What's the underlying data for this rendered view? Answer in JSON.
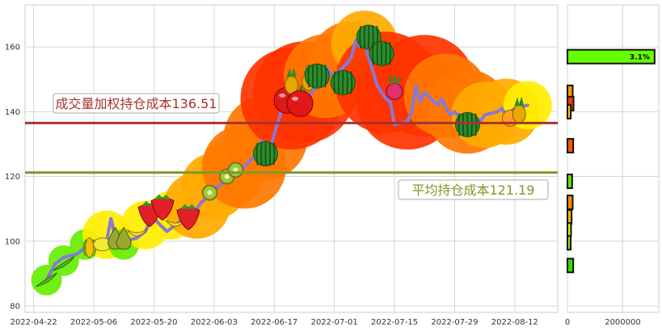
{
  "chart_data": {
    "type": "line",
    "title": "",
    "xlabel": "",
    "ylabel": "",
    "ylim": [
      78,
      173
    ],
    "x_ticks": [
      "2022-04-22",
      "2022-05-06",
      "2022-05-20",
      "2022-06-03",
      "2022-06-17",
      "2022-07-01",
      "2022-07-15",
      "2022-07-29",
      "2022-08-12"
    ],
    "y_ticks": [
      80,
      100,
      120,
      140,
      160
    ],
    "x_range": [
      "2022-04-20",
      "2022-08-22"
    ],
    "grid": true,
    "price": {
      "color": "#8878d8",
      "x": [
        "2022-04-25",
        "2022-04-27",
        "2022-04-29",
        "2022-05-02",
        "2022-05-04",
        "2022-05-06",
        "2022-05-09",
        "2022-05-10",
        "2022-05-11",
        "2022-05-12",
        "2022-05-13",
        "2022-05-16",
        "2022-05-17",
        "2022-05-18",
        "2022-05-19",
        "2022-05-20",
        "2022-05-23",
        "2022-05-24",
        "2022-05-25",
        "2022-05-26",
        "2022-05-27",
        "2022-05-30",
        "2022-05-31",
        "2022-06-01",
        "2022-06-02",
        "2022-06-06",
        "2022-06-07",
        "2022-06-08",
        "2022-06-09",
        "2022-06-10",
        "2022-06-13",
        "2022-06-14",
        "2022-06-15",
        "2022-06-16",
        "2022-06-17",
        "2022-06-20",
        "2022-06-21",
        "2022-06-22",
        "2022-06-23",
        "2022-06-24",
        "2022-06-27",
        "2022-06-28",
        "2022-06-29",
        "2022-06-30",
        "2022-07-01",
        "2022-07-04",
        "2022-07-05",
        "2022-07-06",
        "2022-07-07",
        "2022-07-08",
        "2022-07-11",
        "2022-07-12",
        "2022-07-13",
        "2022-07-14",
        "2022-07-15",
        "2022-07-18",
        "2022-07-19",
        "2022-07-20",
        "2022-07-21",
        "2022-07-22",
        "2022-07-25",
        "2022-07-26",
        "2022-07-27",
        "2022-07-28",
        "2022-07-29",
        "2022-08-01",
        "2022-08-02",
        "2022-08-03",
        "2022-08-04",
        "2022-08-05",
        "2022-08-08",
        "2022-08-09",
        "2022-08-10",
        "2022-08-11",
        "2022-08-12",
        "2022-08-15"
      ],
      "y": [
        88,
        93,
        95,
        96,
        98,
        100,
        100,
        107,
        101,
        99,
        100,
        101,
        102,
        103,
        106,
        107,
        103,
        104,
        105,
        106,
        108,
        110,
        112,
        113,
        115,
        119,
        121,
        120,
        122,
        123,
        127,
        131,
        130,
        128,
        133,
        146,
        145,
        144,
        142,
        143,
        148,
        150,
        154,
        152,
        151,
        155,
        157,
        162,
        160,
        161,
        148,
        146,
        144,
        143,
        136,
        137,
        140,
        148,
        143,
        146,
        142,
        144,
        141,
        139,
        140,
        135,
        136,
        138,
        137,
        139,
        140,
        141,
        139,
        140,
        141,
        142
      ]
    },
    "markers": {
      "x": [
        "2022-04-25",
        "2022-04-29",
        "2022-05-04",
        "2022-05-09",
        "2022-05-13",
        "2022-05-18",
        "2022-05-24",
        "2022-05-30",
        "2022-06-03",
        "2022-06-07",
        "2022-06-10",
        "2022-06-15",
        "2022-06-21",
        "2022-06-24",
        "2022-06-29",
        "2022-07-05",
        "2022-07-08",
        "2022-07-13",
        "2022-07-18",
        "2022-07-22",
        "2022-07-27",
        "2022-08-01",
        "2022-08-05",
        "2022-08-10",
        "2022-08-15"
      ],
      "y": [
        88,
        94,
        99,
        102,
        99,
        105,
        108,
        111,
        117,
        121,
        123,
        132,
        144,
        146,
        151,
        155,
        161,
        149,
        144,
        148,
        145,
        140,
        139,
        140,
        142
      ],
      "bubble_size": [
        1,
        1,
        1,
        2,
        1,
        2,
        2,
        3,
        3,
        3,
        4,
        4,
        5,
        5,
        4,
        4,
        3,
        5,
        5,
        5,
        4,
        4,
        3,
        3,
        2
      ]
    },
    "fruit_icons": [
      {
        "x": "2022-04-25",
        "y": 88,
        "kind": "peas"
      },
      {
        "x": "2022-04-29",
        "y": 93,
        "kind": "peas"
      },
      {
        "x": "2022-05-05",
        "y": 98,
        "kind": "corn"
      },
      {
        "x": "2022-05-08",
        "y": 99,
        "kind": "lemon"
      },
      {
        "x": "2022-05-11",
        "y": 101,
        "kind": "pear"
      },
      {
        "x": "2022-05-13",
        "y": 101,
        "kind": "pear"
      },
      {
        "x": "2022-05-16",
        "y": 103,
        "kind": "banana"
      },
      {
        "x": "2022-05-19",
        "y": 109,
        "kind": "strawberry"
      },
      {
        "x": "2022-05-22",
        "y": 111,
        "kind": "strawberry"
      },
      {
        "x": "2022-05-25",
        "y": 106,
        "kind": "banana"
      },
      {
        "x": "2022-05-28",
        "y": 108,
        "kind": "strawberry"
      },
      {
        "x": "2022-06-02",
        "y": 115,
        "kind": "kiwi"
      },
      {
        "x": "2022-06-06",
        "y": 120,
        "kind": "kiwi"
      },
      {
        "x": "2022-06-08",
        "y": 122,
        "kind": "kiwi"
      },
      {
        "x": "2022-06-15",
        "y": 127,
        "kind": "watermelon"
      },
      {
        "x": "2022-06-20",
        "y": 144,
        "kind": "apple"
      },
      {
        "x": "2022-06-21",
        "y": 149,
        "kind": "pineapple"
      },
      {
        "x": "2022-06-23",
        "y": 143,
        "kind": "apple"
      },
      {
        "x": "2022-06-25",
        "y": 150,
        "kind": "pineapple"
      },
      {
        "x": "2022-06-27",
        "y": 151,
        "kind": "watermelon"
      },
      {
        "x": "2022-07-03",
        "y": 149,
        "kind": "watermelon"
      },
      {
        "x": "2022-07-09",
        "y": 163,
        "kind": "watermelon"
      },
      {
        "x": "2022-07-12",
        "y": 158,
        "kind": "watermelon"
      },
      {
        "x": "2022-07-15",
        "y": 147,
        "kind": "radish"
      },
      {
        "x": "2022-08-01",
        "y": 136,
        "kind": "watermelon"
      },
      {
        "x": "2022-08-11",
        "y": 138,
        "kind": "orange"
      },
      {
        "x": "2022-08-13",
        "y": 140,
        "kind": "pineapple"
      }
    ],
    "hlines": [
      {
        "label": "成交量加权持仓成本136.51",
        "value": 136.51,
        "color": "#a83232"
      },
      {
        "label": "平均持仓成本121.19",
        "value": 121.19,
        "color": "#7a9a2a"
      }
    ],
    "volume_profile": {
      "xlim": [
        0,
        3300000
      ],
      "x_ticks": [
        0,
        2000000
      ],
      "bars": [
        {
          "price": 157,
          "volume": 3150000,
          "color": "#66ff00",
          "label": "3.1%"
        },
        {
          "price": 146,
          "volume": 190000,
          "color": "#ff9900",
          "label": ""
        },
        {
          "price": 142.5,
          "volume": 220000,
          "color": "#ff3300",
          "label": ""
        },
        {
          "price": 140,
          "volume": 120000,
          "color": "#ffcc00",
          "label": ""
        },
        {
          "price": 129.5,
          "volume": 210000,
          "color": "#ff5500",
          "label": ""
        },
        {
          "price": 118.5,
          "volume": 170000,
          "color": "#55ee00",
          "label": ""
        },
        {
          "price": 112,
          "volume": 190000,
          "color": "#ff8800",
          "label": ""
        },
        {
          "price": 107.5,
          "volume": 150000,
          "color": "#ffbb00",
          "label": ""
        },
        {
          "price": 103.5,
          "volume": 130000,
          "color": "#ddee00",
          "label": ""
        },
        {
          "price": 99.5,
          "volume": 110000,
          "color": "#99ee00",
          "label": ""
        },
        {
          "price": 92.5,
          "volume": 210000,
          "color": "#33dd00",
          "label": ""
        }
      ]
    }
  }
}
